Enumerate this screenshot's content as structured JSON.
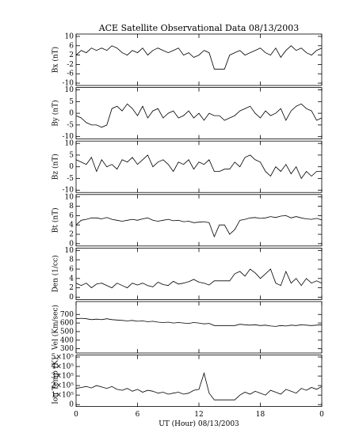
{
  "chart_data": [
    {
      "type": "line",
      "title": "ACE Satellite Observational Data   08/13/2003",
      "y_label": "Bx (nT)",
      "color": "#000000",
      "x": [
        0,
        0.5,
        1,
        1.5,
        2,
        2.5,
        3,
        3.5,
        4,
        4.5,
        5,
        5.5,
        6,
        6.5,
        7,
        7.5,
        8,
        8.5,
        9,
        9.5,
        10,
        10.5,
        11,
        11.5,
        12,
        12.5,
        13,
        13.5,
        14,
        14.5,
        15,
        15.5,
        16,
        16.5,
        17,
        17.5,
        18,
        18.5,
        19,
        19.5,
        20,
        20.5,
        21,
        21.5,
        22,
        22.5,
        23,
        23.5,
        24
      ],
      "values": [
        2,
        4,
        3,
        5,
        4,
        5,
        4,
        6,
        5,
        3,
        2,
        4,
        3,
        5,
        2,
        4,
        5,
        4,
        3,
        4,
        5,
        2,
        3,
        1,
        2,
        4,
        3,
        -4,
        -4,
        -4,
        2,
        3,
        4,
        2,
        3,
        4,
        5,
        3,
        2,
        5,
        1,
        4,
        6,
        4,
        5,
        3,
        2,
        4,
        5
      ],
      "ylim": [
        -11,
        11
      ],
      "yticks": [
        -10,
        -6,
        -2,
        2,
        6,
        10
      ]
    },
    {
      "type": "line",
      "y_label": "By (nT)",
      "color": "#000000",
      "x": [
        0,
        0.5,
        1,
        1.5,
        2,
        2.5,
        3,
        3.5,
        4,
        4.5,
        5,
        5.5,
        6,
        6.5,
        7,
        7.5,
        8,
        8.5,
        9,
        9.5,
        10,
        10.5,
        11,
        11.5,
        12,
        12.5,
        13,
        13.5,
        14,
        14.5,
        15,
        15.5,
        16,
        16.5,
        17,
        17.5,
        18,
        18.5,
        19,
        19.5,
        20,
        20.5,
        21,
        21.5,
        22,
        22.5,
        23,
        23.5,
        24
      ],
      "values": [
        -1,
        -2,
        -4,
        -5,
        -5,
        -6,
        -5,
        2,
        3,
        1,
        4,
        2,
        -1,
        3,
        -2,
        1,
        2,
        -2,
        0,
        1,
        -2,
        -1,
        1,
        -2,
        0,
        -3,
        0,
        -1,
        -1,
        -3,
        -2,
        -1,
        1,
        2,
        3,
        0,
        -2,
        1,
        -1,
        0,
        2,
        -3,
        1,
        3,
        4,
        2,
        1,
        -3,
        -2
      ],
      "ylim": [
        -11,
        11
      ],
      "yticks": [
        -10,
        -5,
        0,
        5,
        10
      ]
    },
    {
      "type": "line",
      "y_label": "Bz (nT)",
      "color": "#000000",
      "x": [
        0,
        0.5,
        1,
        1.5,
        2,
        2.5,
        3,
        3.5,
        4,
        4.5,
        5,
        5.5,
        6,
        6.5,
        7,
        7.5,
        8,
        8.5,
        9,
        9.5,
        10,
        10.5,
        11,
        11.5,
        12,
        12.5,
        13,
        13.5,
        14,
        14.5,
        15,
        15.5,
        16,
        16.5,
        17,
        17.5,
        18,
        18.5,
        19,
        19.5,
        20,
        20.5,
        21,
        21.5,
        22,
        22.5,
        23,
        23.5,
        24
      ],
      "values": [
        3,
        2,
        1,
        4,
        -2,
        3,
        0,
        1,
        -1,
        3,
        2,
        4,
        1,
        3,
        5,
        0,
        2,
        3,
        1,
        -2,
        2,
        1,
        3,
        -1,
        2,
        1,
        3,
        -2,
        -2,
        -1,
        -1,
        2,
        0,
        4,
        5,
        3,
        2,
        -2,
        -4,
        0,
        -2,
        1,
        -3,
        0,
        -5,
        -2,
        -4,
        -2,
        -2
      ],
      "ylim": [
        -11,
        11
      ],
      "yticks": [
        -10,
        -5,
        0,
        5,
        10
      ]
    },
    {
      "type": "line",
      "y_label": "Bt (nT)",
      "color": "#000000",
      "x": [
        0,
        0.5,
        1,
        1.5,
        2,
        2.5,
        3,
        3.5,
        4,
        4.5,
        5,
        5.5,
        6,
        6.5,
        7,
        7.5,
        8,
        8.5,
        9,
        9.5,
        10,
        10.5,
        11,
        11.5,
        12,
        12.5,
        13,
        13.5,
        14,
        14.5,
        15,
        15.5,
        16,
        16.5,
        17,
        17.5,
        18,
        18.5,
        19,
        19.5,
        20,
        20.5,
        21,
        21.5,
        22,
        22.5,
        23,
        23.5,
        24
      ],
      "values": [
        4,
        5,
        5.2,
        5.5,
        5.5,
        5.3,
        5.6,
        5.2,
        5,
        4.8,
        5,
        5.2,
        5,
        5.3,
        5.5,
        5,
        4.8,
        5,
        5.2,
        4.9,
        5,
        4.7,
        4.8,
        4.5,
        4.6,
        4.7,
        4.5,
        1.5,
        4,
        4,
        2,
        3,
        5,
        5.2,
        5.5,
        5.6,
        5.4,
        5.5,
        5.8,
        5.6,
        5.9,
        6,
        5.5,
        5.8,
        5.5,
        5.3,
        5.2,
        5.4,
        5.1
      ],
      "ylim": [
        -0.5,
        10.5
      ],
      "yticks": [
        0,
        2,
        4,
        6,
        8,
        10
      ]
    },
    {
      "type": "line",
      "y_label": "Den (1/cc)",
      "color": "#000000",
      "x": [
        0,
        0.5,
        1,
        1.5,
        2,
        2.5,
        3,
        3.5,
        4,
        4.5,
        5,
        5.5,
        6,
        6.5,
        7,
        7.5,
        8,
        8.5,
        9,
        9.5,
        10,
        10.5,
        11,
        11.5,
        12,
        12.5,
        13,
        13.5,
        14,
        14.5,
        15,
        15.5,
        16,
        16.5,
        17,
        17.5,
        18,
        18.5,
        19,
        19.5,
        20,
        20.5,
        21,
        21.5,
        22,
        22.5,
        23,
        23.5,
        24
      ],
      "values": [
        3,
        2.5,
        3,
        2,
        2.8,
        3,
        2.5,
        2,
        3,
        2.5,
        2,
        3,
        2.6,
        3,
        2.5,
        2.2,
        3.2,
        2.7,
        2.5,
        3.4,
        2.8,
        3,
        3.3,
        3.8,
        3.2,
        3,
        2.6,
        3.5,
        3.5,
        3.5,
        3.5,
        5,
        5.5,
        4.5,
        6,
        5.2,
        4,
        5,
        6,
        3,
        2.5,
        5.5,
        3,
        4,
        2.5,
        4,
        3,
        3.5,
        3
      ],
      "ylim": [
        -0.5,
        10.5
      ],
      "yticks": [
        0,
        2,
        4,
        6,
        8,
        10
      ]
    },
    {
      "type": "line",
      "y_label": "Vel (Km/sec)",
      "color": "#000000",
      "x": [
        0,
        0.5,
        1,
        1.5,
        2,
        2.5,
        3,
        3.5,
        4,
        4.5,
        5,
        5.5,
        6,
        6.5,
        7,
        7.5,
        8,
        8.5,
        9,
        9.5,
        10,
        10.5,
        11,
        11.5,
        12,
        12.5,
        13,
        13.5,
        14,
        14.5,
        15,
        15.5,
        16,
        16.5,
        17,
        17.5,
        18,
        18.5,
        19,
        19.5,
        20,
        20.5,
        21,
        21.5,
        22,
        22.5,
        23,
        23.5,
        24
      ],
      "values": [
        650,
        655,
        650,
        640,
        645,
        640,
        650,
        640,
        635,
        630,
        625,
        630,
        620,
        625,
        615,
        620,
        610,
        605,
        610,
        600,
        605,
        600,
        595,
        605,
        600,
        590,
        595,
        570,
        570,
        570,
        570,
        570,
        585,
        580,
        575,
        580,
        570,
        575,
        565,
        560,
        570,
        565,
        575,
        570,
        580,
        575,
        570,
        575,
        580
      ],
      "ylim": [
        250,
        850
      ],
      "yticks": [
        300,
        400,
        500,
        600,
        700
      ]
    },
    {
      "type": "line",
      "y_label": "Ion Temp (K)",
      "color": "#000000",
      "x_label": "UT (Hour)  08/13/2003",
      "x": [
        0,
        0.5,
        1,
        1.5,
        2,
        2.5,
        3,
        3.5,
        4,
        4.5,
        5,
        5.5,
        6,
        6.5,
        7,
        7.5,
        8,
        8.5,
        9,
        9.5,
        10,
        10.5,
        11,
        11.5,
        12,
        12.5,
        13,
        13.5,
        14,
        14.5,
        15,
        15.5,
        16,
        16.5,
        17,
        17.5,
        18,
        18.5,
        19,
        19.5,
        20,
        20.5,
        21,
        21.5,
        22,
        22.5,
        23,
        23.5,
        24
      ],
      "values": [
        170000,
        180000,
        190000,
        175000,
        200000,
        185000,
        170000,
        190000,
        160000,
        150000,
        170000,
        140000,
        160000,
        130000,
        150000,
        140000,
        120000,
        130000,
        110000,
        120000,
        130000,
        110000,
        120000,
        150000,
        160000,
        330000,
        120000,
        50000,
        50000,
        50000,
        50000,
        50000,
        100000,
        130000,
        110000,
        140000,
        120000,
        100000,
        150000,
        130000,
        110000,
        160000,
        140000,
        120000,
        170000,
        150000,
        180000,
        160000,
        190000
      ],
      "ylim": [
        -20000,
        520000
      ],
      "yticks": [
        0,
        {
          "value": 100000,
          "label": "1×10⁵"
        },
        {
          "value": 200000,
          "label": "2×10⁵"
        },
        {
          "value": 300000,
          "label": "3×10⁵"
        },
        {
          "value": 400000,
          "label": "4×10⁵"
        },
        {
          "value": 500000,
          "label": "5×10⁵"
        }
      ],
      "xlim": [
        0,
        24
      ],
      "xticks": [
        0,
        6,
        12,
        18,
        {
          "value": 24,
          "label": "0"
        }
      ]
    }
  ]
}
